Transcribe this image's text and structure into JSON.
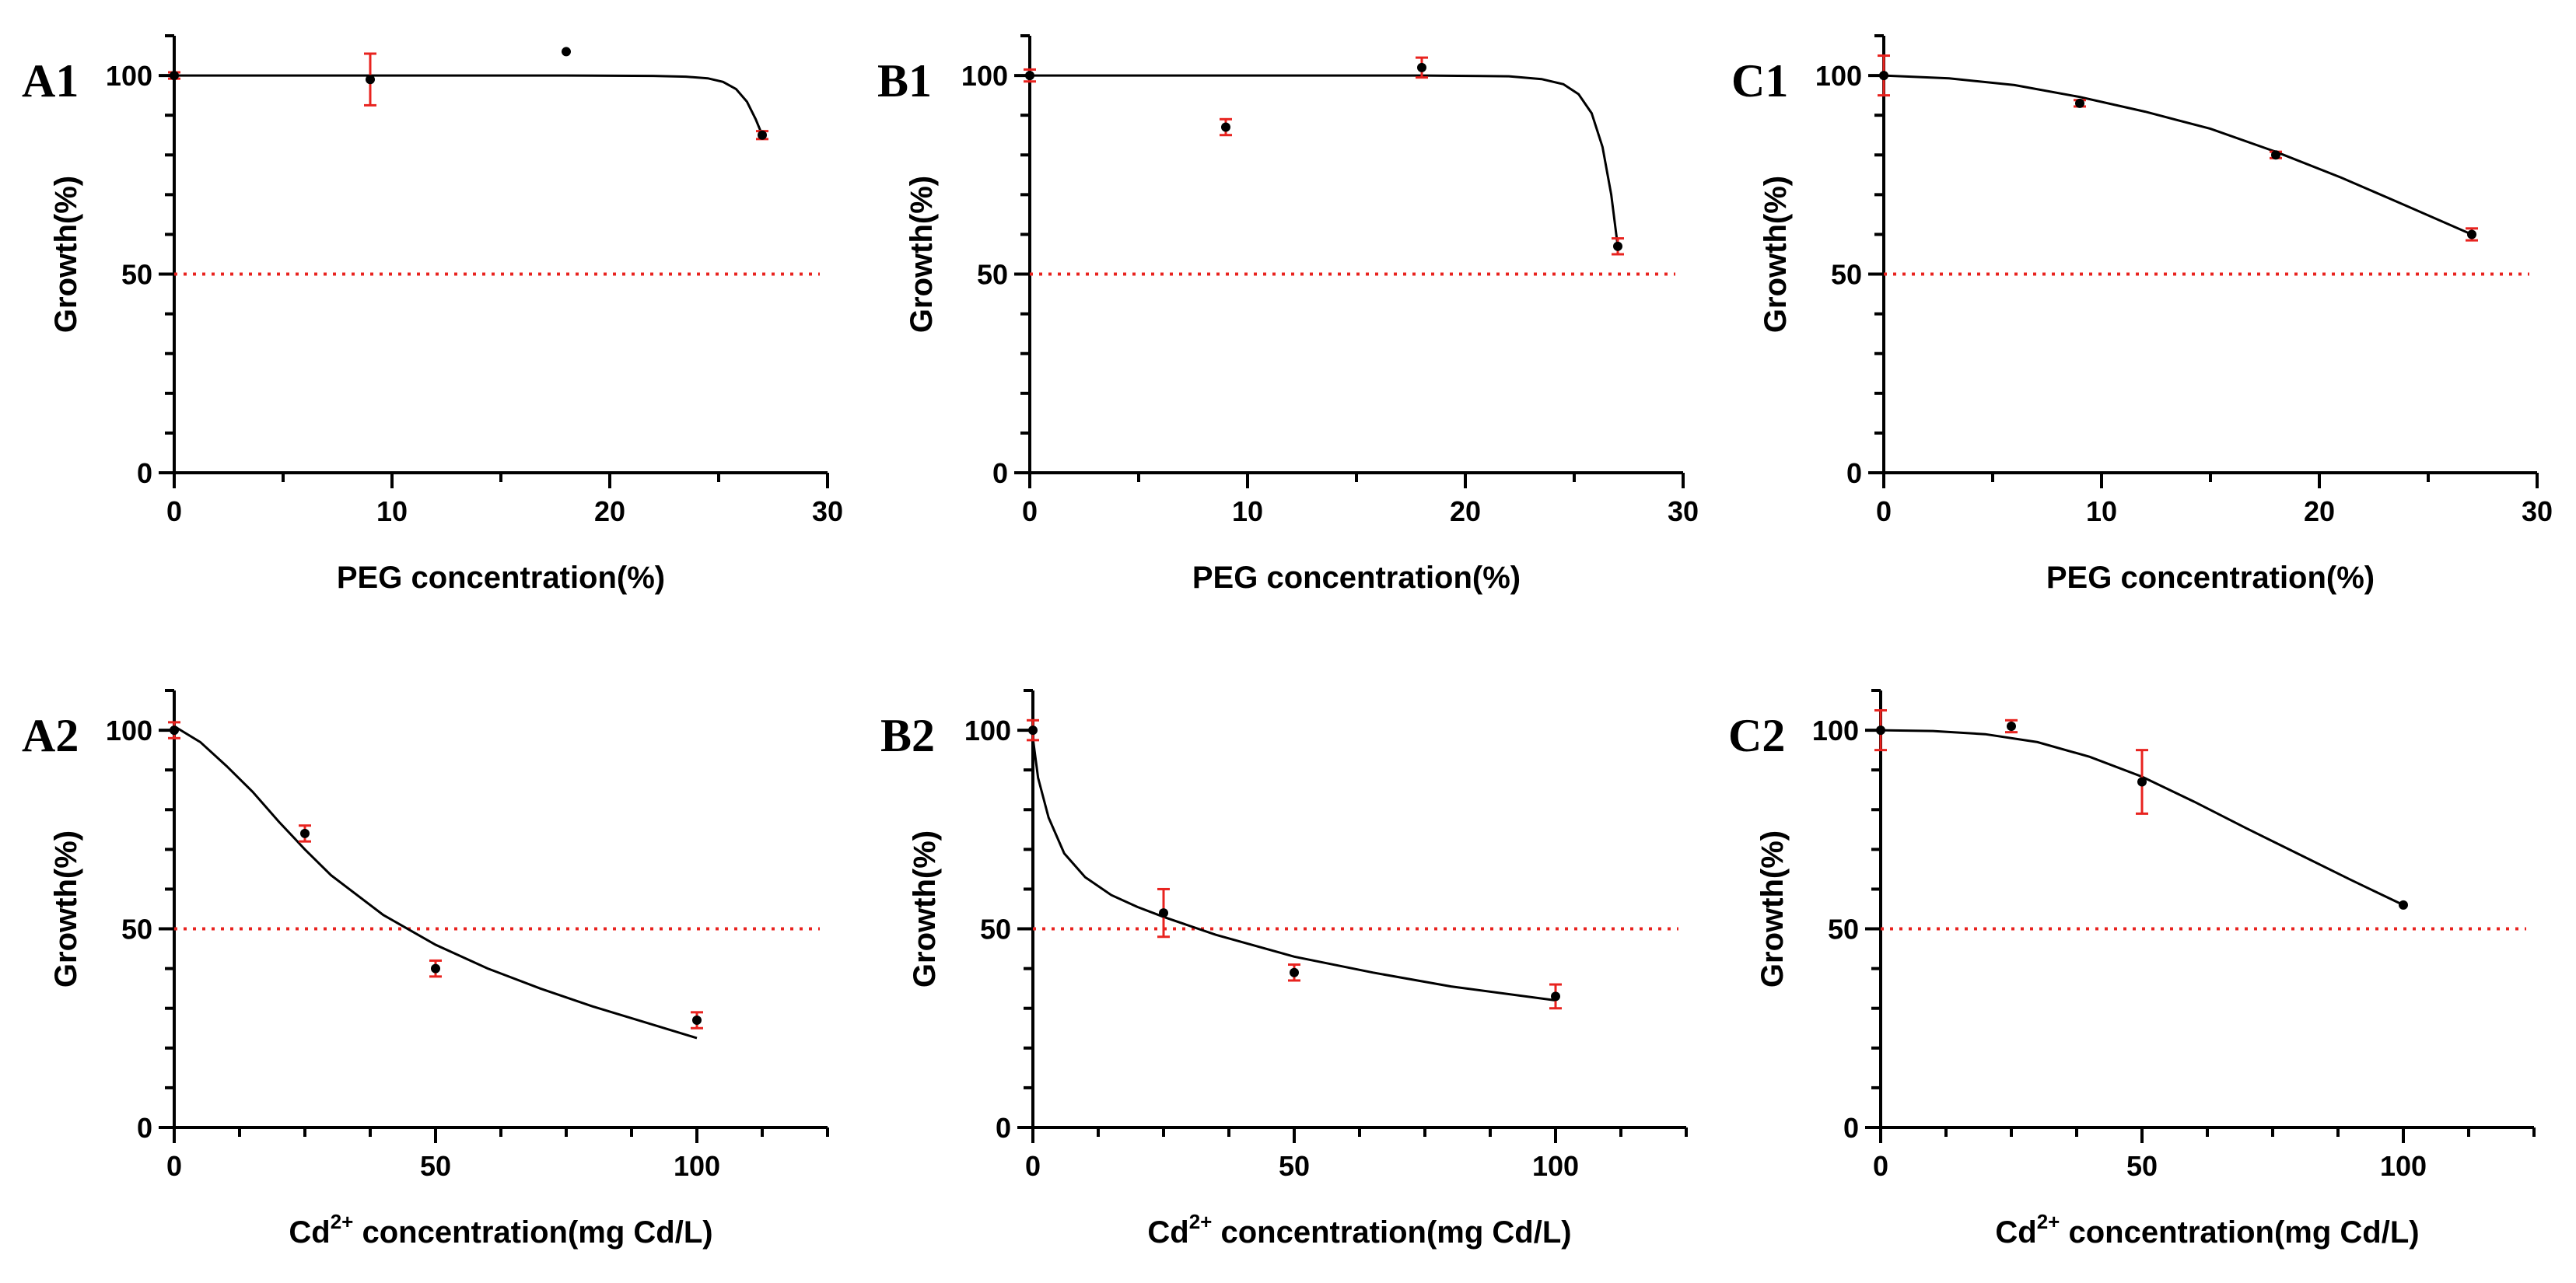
{
  "figure": {
    "colors": {
      "axis": "#000000",
      "curve": "#000000",
      "point": "#000000",
      "errorbar": "#e8231f",
      "threshold": "#e8231f"
    }
  },
  "chart_data": [
    {
      "id": "A1",
      "panel_label": "A1",
      "type": "scatter",
      "xlabel": "PEG concentration(%)",
      "ylabel": "Growth(%)",
      "xlabel_super": "",
      "xlim": [
        0,
        30
      ],
      "ylim": [
        0,
        110
      ],
      "xticks": [
        0,
        10,
        20,
        30
      ],
      "xminor": 5,
      "yticks": [
        0,
        50,
        100
      ],
      "yminor": 10,
      "threshold": 50,
      "points": [
        {
          "x": 0,
          "y": 100,
          "err": 0.8
        },
        {
          "x": 9,
          "y": 99,
          "err": 6.5
        },
        {
          "x": 18,
          "y": 106,
          "err": 0
        },
        {
          "x": 27,
          "y": 85,
          "err": 1
        }
      ],
      "curve": [
        [
          0,
          100
        ],
        [
          10,
          100
        ],
        [
          18,
          100
        ],
        [
          22,
          99.9
        ],
        [
          23.5,
          99.7
        ],
        [
          24.5,
          99.3
        ],
        [
          25.2,
          98.4
        ],
        [
          25.8,
          96.6
        ],
        [
          26.3,
          93.4
        ],
        [
          26.7,
          89
        ],
        [
          27,
          85
        ]
      ]
    },
    {
      "id": "B1",
      "panel_label": "B1",
      "type": "scatter",
      "xlabel": "PEG concentration(%)",
      "ylabel": "Growth(%)",
      "xlabel_super": "",
      "xlim": [
        0,
        30
      ],
      "ylim": [
        0,
        110
      ],
      "xticks": [
        0,
        10,
        20,
        30
      ],
      "xminor": 5,
      "yticks": [
        0,
        50,
        100
      ],
      "yminor": 10,
      "threshold": 50,
      "points": [
        {
          "x": 0,
          "y": 100,
          "err": 1.5
        },
        {
          "x": 9,
          "y": 87,
          "err": 2
        },
        {
          "x": 18,
          "y": 102,
          "err": 2.5
        },
        {
          "x": 27,
          "y": 57,
          "err": 2
        }
      ],
      "curve": [
        [
          0,
          100
        ],
        [
          10,
          100
        ],
        [
          18,
          100
        ],
        [
          22,
          99.8
        ],
        [
          23.5,
          99.1
        ],
        [
          24.5,
          97.8
        ],
        [
          25.2,
          95.3
        ],
        [
          25.8,
          90.5
        ],
        [
          26.3,
          82
        ],
        [
          26.7,
          70
        ],
        [
          27,
          57
        ]
      ]
    },
    {
      "id": "C1",
      "panel_label": "C1",
      "type": "scatter",
      "xlabel": "PEG concentration(%)",
      "ylabel": "Growth(%)",
      "xlabel_super": "",
      "xlim": [
        0,
        30
      ],
      "ylim": [
        0,
        110
      ],
      "xticks": [
        0,
        10,
        20,
        30
      ],
      "xminor": 5,
      "yticks": [
        0,
        50,
        100
      ],
      "yminor": 10,
      "threshold": 50,
      "points": [
        {
          "x": 0,
          "y": 100,
          "err": 5
        },
        {
          "x": 9,
          "y": 93,
          "err": 0.8
        },
        {
          "x": 18,
          "y": 80,
          "err": 0.8
        },
        {
          "x": 27,
          "y": 60,
          "err": 1.5
        }
      ],
      "curve": [
        [
          0,
          100
        ],
        [
          3,
          99.3
        ],
        [
          6,
          97.6
        ],
        [
          9,
          94.6
        ],
        [
          12,
          90.9
        ],
        [
          15,
          86.6
        ],
        [
          18,
          80.8
        ],
        [
          21,
          74.3
        ],
        [
          24,
          67.2
        ],
        [
          27,
          60
        ]
      ]
    },
    {
      "id": "A2",
      "panel_label": "A2",
      "type": "scatter",
      "xlabel": "concentration(mg Cd/L)",
      "xlabel_prefix": "Cd",
      "xlabel_super": "2+",
      "ylabel": "Growth(%)",
      "xlim": [
        0,
        125
      ],
      "ylim": [
        0,
        110
      ],
      "xticks": [
        0,
        50,
        100
      ],
      "xminor": 12.5,
      "yticks": [
        0,
        50,
        100
      ],
      "yminor": 10,
      "threshold": 50,
      "points": [
        {
          "x": 0,
          "y": 100,
          "err": 2
        },
        {
          "x": 25,
          "y": 74,
          "err": 2
        },
        {
          "x": 50,
          "y": 40,
          "err": 2
        },
        {
          "x": 100,
          "y": 27,
          "err": 2
        }
      ],
      "curve": [
        [
          0,
          101
        ],
        [
          5,
          97
        ],
        [
          10,
          91
        ],
        [
          15,
          84.5
        ],
        [
          20,
          77
        ],
        [
          25,
          70
        ],
        [
          30,
          63.5
        ],
        [
          40,
          53.5
        ],
        [
          50,
          46
        ],
        [
          60,
          40
        ],
        [
          70,
          35
        ],
        [
          80,
          30.5
        ],
        [
          90,
          26.5
        ],
        [
          100,
          22.5
        ]
      ]
    },
    {
      "id": "B2",
      "panel_label": "B2",
      "type": "scatter",
      "xlabel": "concentration(mg Cd/L)",
      "xlabel_prefix": "Cd",
      "xlabel_super": "2+",
      "ylabel": "Growth(%)",
      "xlim": [
        0,
        125
      ],
      "ylim": [
        0,
        110
      ],
      "xticks": [
        0,
        50,
        100
      ],
      "xminor": 12.5,
      "yticks": [
        0,
        50,
        100
      ],
      "yminor": 10,
      "threshold": 50,
      "points": [
        {
          "x": 0,
          "y": 100,
          "err": 2.5
        },
        {
          "x": 25,
          "y": 54,
          "err": 6
        },
        {
          "x": 50,
          "y": 39,
          "err": 2
        },
        {
          "x": 100,
          "y": 33,
          "err": 3
        }
      ],
      "curve": [
        [
          0,
          98
        ],
        [
          1,
          88
        ],
        [
          3,
          78
        ],
        [
          6,
          69
        ],
        [
          10,
          63
        ],
        [
          15,
          58.5
        ],
        [
          20,
          55.5
        ],
        [
          25,
          53
        ],
        [
          35,
          48.5
        ],
        [
          50,
          43
        ],
        [
          65,
          39
        ],
        [
          80,
          35.5
        ],
        [
          100,
          32
        ]
      ]
    },
    {
      "id": "C2",
      "panel_label": "C2",
      "type": "scatter",
      "xlabel": "concentration(mg Cd/L)",
      "xlabel_prefix": "Cd",
      "xlabel_super": "2+",
      "ylabel": "Growth(%)",
      "xlim": [
        0,
        125
      ],
      "ylim": [
        0,
        110
      ],
      "xticks": [
        0,
        50,
        100
      ],
      "xminor": 12.5,
      "yticks": [
        0,
        50,
        100
      ],
      "yminor": 10,
      "threshold": 50,
      "points": [
        {
          "x": 0,
          "y": 100,
          "err": 5
        },
        {
          "x": 25,
          "y": 101,
          "err": 1.5
        },
        {
          "x": 50,
          "y": 87,
          "err": 8
        },
        {
          "x": 100,
          "y": 56,
          "err": 0
        }
      ],
      "curve": [
        [
          0,
          100
        ],
        [
          10,
          99.8
        ],
        [
          20,
          99
        ],
        [
          30,
          97
        ],
        [
          40,
          93.3
        ],
        [
          50,
          88.3
        ],
        [
          60,
          82
        ],
        [
          70,
          75.3
        ],
        [
          80,
          68.8
        ],
        [
          90,
          62.3
        ],
        [
          100,
          56
        ]
      ]
    }
  ]
}
